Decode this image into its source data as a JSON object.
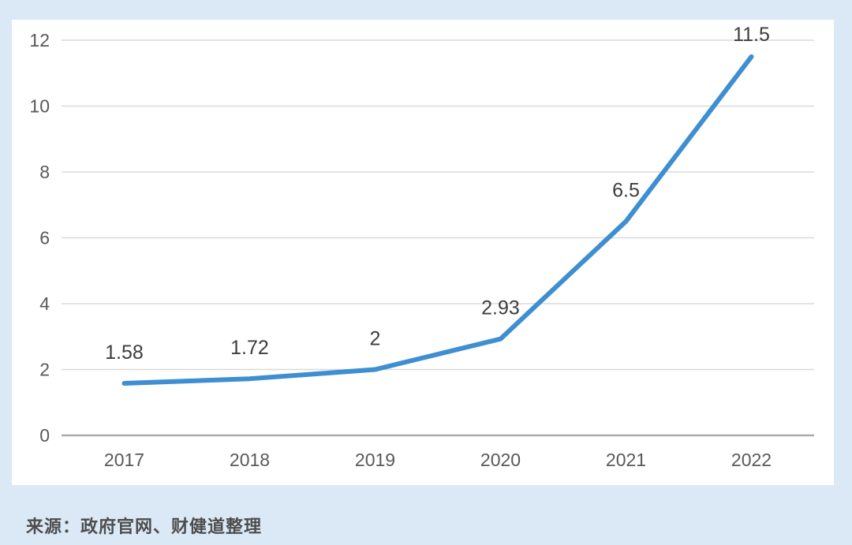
{
  "page": {
    "background_color": "#dbe9f6",
    "card_color": "#ffffff"
  },
  "chart_data": {
    "type": "line",
    "title": "",
    "xlabel": "",
    "ylabel": "",
    "categories": [
      "2017",
      "2018",
      "2019",
      "2020",
      "2021",
      "2022"
    ],
    "values": [
      1.58,
      1.72,
      2,
      2.93,
      6.5,
      11.5
    ],
    "data_labels": [
      "1.58",
      "1.72",
      "2",
      "2.93",
      "6.5",
      "11.5"
    ],
    "y_ticks": [
      0,
      2,
      4,
      6,
      8,
      10,
      12
    ],
    "ylim": [
      0,
      12
    ],
    "grid": true,
    "legend_position": "none",
    "line_color": "#3e8ed2",
    "line_width": 6,
    "gridline_color": "#dadada",
    "axis_line_color": "#ababab",
    "tick_label_color": "#595959",
    "data_label_color": "#3d3d3d"
  },
  "source": {
    "text": "来源：政府官网、财健道整理"
  }
}
